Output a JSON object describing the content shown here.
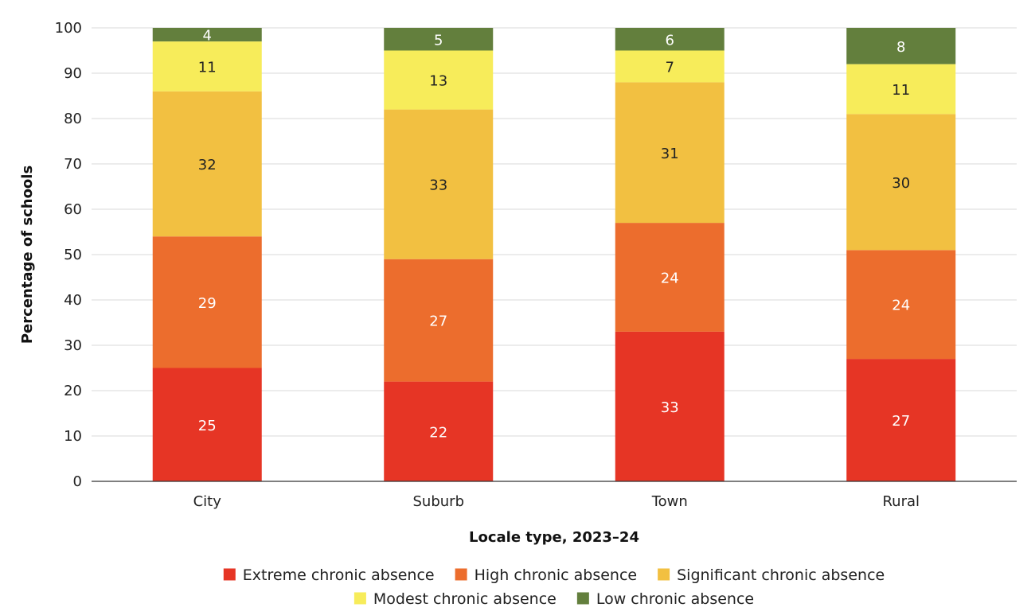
{
  "chart_data": {
    "type": "bar",
    "stacked": true,
    "categories": [
      "City",
      "Suburb",
      "Town",
      "Rural"
    ],
    "series": [
      {
        "name": "Extreme chronic absence",
        "values": [
          25,
          22,
          33,
          27
        ],
        "color": "#e63525"
      },
      {
        "name": "High chronic absence",
        "values": [
          29,
          27,
          24,
          24
        ],
        "color": "#ec6d2d"
      },
      {
        "name": "Significant chronic absence",
        "values": [
          32,
          33,
          31,
          30
        ],
        "color": "#f2c041"
      },
      {
        "name": "Modest chronic absence",
        "values": [
          11,
          13,
          7,
          11
        ],
        "color": "#f7ec5a"
      },
      {
        "name": "Low chronic absence",
        "values": [
          4,
          5,
          6,
          8
        ],
        "color": "#637f3d"
      }
    ],
    "data_label_colors": [
      "#ffffff",
      "#ffffff",
      "#222222",
      "#222222",
      "#ffffff"
    ],
    "xlabel": "Locale type, 2023–24",
    "ylabel": "Percentage of schools",
    "ylim": [
      0,
      100
    ],
    "yticks": [
      0,
      10,
      20,
      30,
      40,
      50,
      60,
      70,
      80,
      90,
      100
    ],
    "grid": true,
    "legend_position": "bottom"
  }
}
